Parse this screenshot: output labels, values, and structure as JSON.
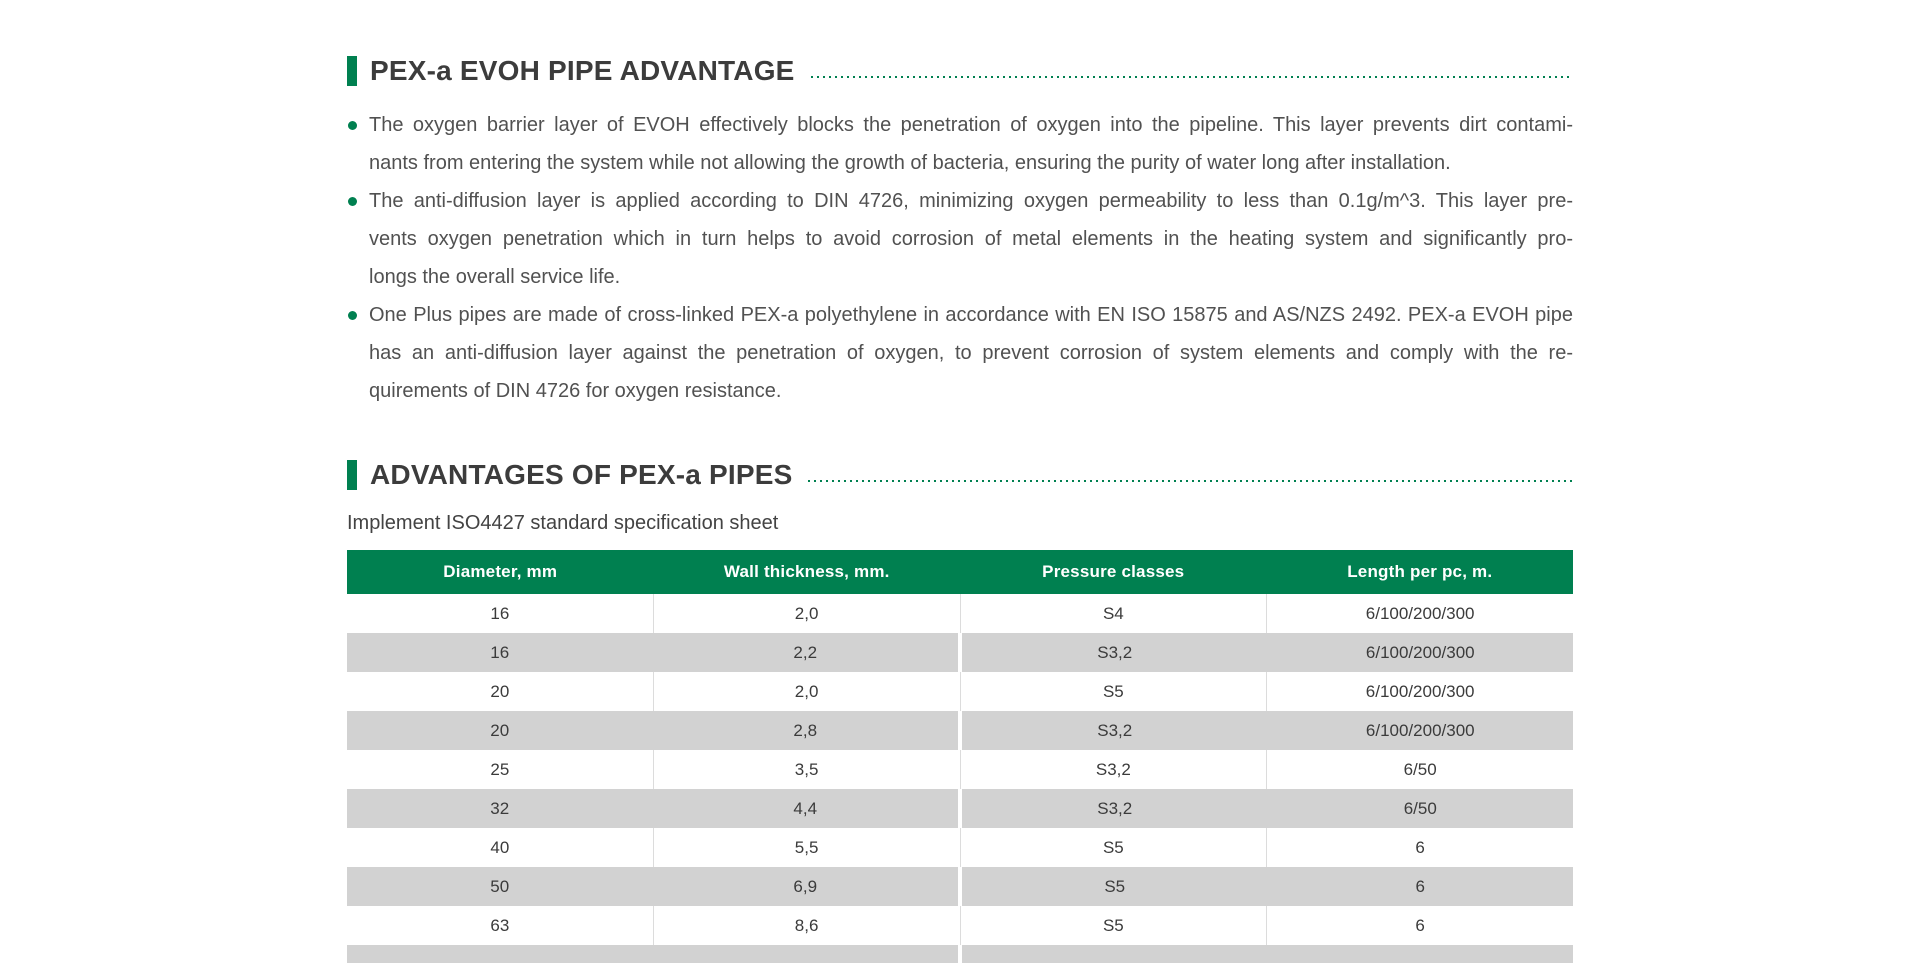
{
  "colors": {
    "accent": "#008050",
    "row_alt": "#d2d2d2",
    "header_text": "#ffffff"
  },
  "section1": {
    "title": "PEX-a EVOH PIPE ADVANTAGE",
    "bullets": [
      {
        "lines": [
          "The oxygen barrier layer of EVOH effectively blocks the penetration of oxygen into the pipeline. This layer prevents dirt contami-",
          "nants from entering the system while not allowing the growth of bacteria, ensuring the purity of water long after installation."
        ]
      },
      {
        "lines": [
          "The anti-diffusion layer is applied according to DIN 4726, minimizing oxygen permeability to less than 0.1g/m^3. This layer pre-",
          "vents oxygen penetration which in turn helps to avoid corrosion of metal elements in the heating system and significantly pro-",
          "longs the overall service life."
        ]
      },
      {
        "lines": [
          "One Plus pipes are made of cross-linked PEX-a polyethylene in accordance with EN ISO 15875 and AS/NZS 2492. PEX-a EVOH pipe",
          "has an anti-diffusion layer against the penetration of oxygen, to prevent corrosion of system elements and comply with the re-",
          "quirements of DIN 4726 for oxygen resistance."
        ]
      }
    ]
  },
  "section2": {
    "title": "ADVANTAGES OF PEX-a PIPES",
    "subtitle": "Implement ISO4427 standard specification sheet",
    "table": {
      "headers": [
        "Diameter, mm",
        "Wall thickness, mm.",
        "Pressure classes",
        "Length per pc, m."
      ],
      "rows": [
        [
          "16",
          "2,0",
          "S4",
          "6/100/200/300"
        ],
        [
          "16",
          "2,2",
          "S3,2",
          "6/100/200/300"
        ],
        [
          "20",
          "2,0",
          "S5",
          "6/100/200/300"
        ],
        [
          "20",
          "2,8",
          "S3,2",
          "6/100/200/300"
        ],
        [
          "25",
          "3,5",
          "S3,2",
          "6/50"
        ],
        [
          "32",
          "4,4",
          "S3,2",
          "6/50"
        ],
        [
          "40",
          "5,5",
          "S5",
          "6"
        ],
        [
          "50",
          "6,9",
          "S5",
          "6"
        ],
        [
          "63",
          "8,6",
          "S5",
          "6"
        ]
      ]
    }
  }
}
